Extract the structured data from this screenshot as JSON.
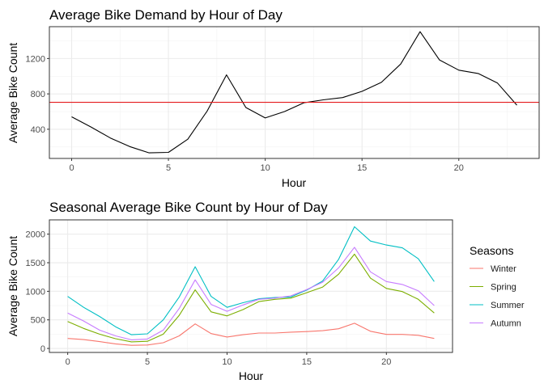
{
  "chart_data": [
    {
      "type": "line",
      "title": "Average Bike Demand by Hour of Day",
      "xlabel": "Hour",
      "ylabel": "Average Bike Count",
      "xlim": [
        -1.15,
        24.15
      ],
      "ylim": [
        70,
        1560
      ],
      "xticks": [
        0,
        5,
        10,
        15,
        20
      ],
      "yticks": [
        400,
        800,
        1200
      ],
      "grid": true,
      "series": [
        {
          "color": "#000000",
          "x": [
            0,
            1,
            2,
            3,
            4,
            5,
            6,
            7,
            8,
            9,
            10,
            11,
            12,
            13,
            14,
            15,
            16,
            17,
            18,
            19,
            20,
            21,
            22,
            23
          ],
          "y": [
            541,
            426,
            301,
            204,
            133,
            139,
            288,
            606,
            1015,
            646,
            528,
            600,
            700,
            733,
            758,
            829,
            930,
            1138,
            1503,
            1184,
            1068,
            1031,
            922,
            672
          ]
        }
      ],
      "hline": {
        "y": 705,
        "color": "#e41a1c"
      }
    },
    {
      "type": "line",
      "title": "Seasonal Average Bike Count by Hour of Day",
      "xlabel": "Hour",
      "ylabel": "Average Bike Count",
      "xlim": [
        -1.15,
        24.15
      ],
      "ylim": [
        -70,
        2250
      ],
      "xticks": [
        0,
        5,
        10,
        15,
        20
      ],
      "yticks": [
        0,
        500,
        1000,
        1500,
        2000
      ],
      "grid": true,
      "legend_title": "Seasons",
      "legend_position": "right",
      "series": [
        {
          "name": "Winter",
          "color": "#F8766D",
          "x": [
            0,
            1,
            2,
            3,
            4,
            5,
            6,
            7,
            8,
            9,
            10,
            11,
            12,
            13,
            14,
            15,
            16,
            17,
            18,
            19,
            20,
            21,
            22,
            23
          ],
          "y": [
            175,
            155,
            120,
            80,
            55,
            60,
            100,
            220,
            430,
            260,
            200,
            240,
            270,
            270,
            285,
            295,
            310,
            345,
            440,
            300,
            245,
            245,
            230,
            175
          ]
        },
        {
          "name": "Spring",
          "color": "#7CAE00",
          "x": [
            0,
            1,
            2,
            3,
            4,
            5,
            6,
            7,
            8,
            9,
            10,
            11,
            12,
            13,
            14,
            15,
            16,
            17,
            18,
            19,
            20,
            21,
            22,
            23
          ],
          "y": [
            470,
            350,
            250,
            170,
            115,
            125,
            250,
            580,
            1025,
            640,
            570,
            680,
            820,
            860,
            880,
            975,
            1075,
            1300,
            1650,
            1230,
            1050,
            995,
            860,
            620
          ]
        },
        {
          "name": "Summer",
          "color": "#00BFC4",
          "x": [
            0,
            1,
            2,
            3,
            4,
            5,
            6,
            7,
            8,
            9,
            10,
            11,
            12,
            13,
            14,
            15,
            16,
            17,
            18,
            19,
            20,
            21,
            22,
            23
          ],
          "y": [
            910,
            720,
            560,
            380,
            240,
            255,
            500,
            900,
            1430,
            910,
            720,
            800,
            870,
            890,
            900,
            1020,
            1180,
            1560,
            2130,
            1880,
            1810,
            1760,
            1570,
            1170
          ]
        },
        {
          "name": "Autumn",
          "color": "#C77CFF",
          "x": [
            0,
            1,
            2,
            3,
            4,
            5,
            6,
            7,
            8,
            9,
            10,
            11,
            12,
            13,
            14,
            15,
            16,
            17,
            18,
            19,
            20,
            21,
            22,
            23
          ],
          "y": [
            620,
            480,
            320,
            220,
            150,
            165,
            320,
            700,
            1200,
            770,
            650,
            760,
            860,
            880,
            920,
            1030,
            1160,
            1410,
            1770,
            1340,
            1170,
            1120,
            1010,
            750
          ]
        }
      ]
    }
  ]
}
